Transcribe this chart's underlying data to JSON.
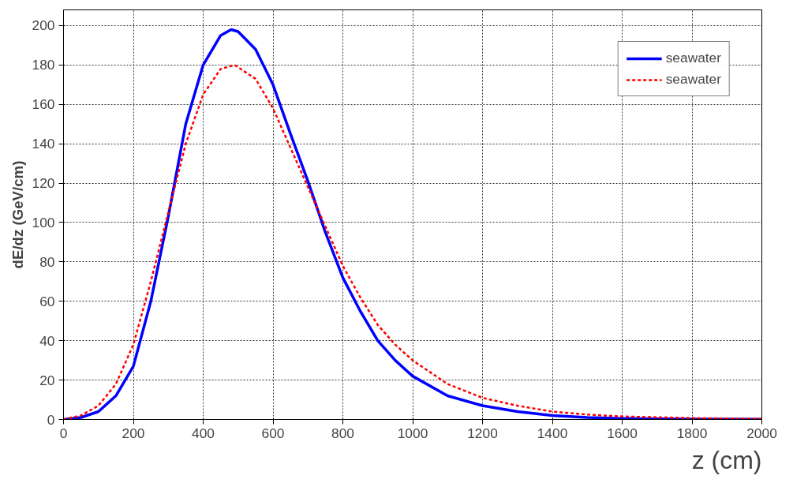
{
  "chart_data": {
    "type": "line",
    "xlabel": "z (cm)",
    "ylabel": "dE/dz (GeV/cm)",
    "xlim": [
      0,
      2000
    ],
    "xticks": [
      0,
      200,
      400,
      600,
      800,
      1000,
      1200,
      1400,
      1600,
      1800,
      2000
    ],
    "ylim": [
      0,
      208
    ],
    "yticks": [
      0,
      20,
      40,
      60,
      80,
      100,
      120,
      140,
      160,
      180,
      200
    ],
    "grid": true,
    "legend": "top right",
    "marker": "none",
    "series": [
      {
        "name": "seawater",
        "color": "#0000ff",
        "line_style": "solid",
        "x": [
          0,
          50,
          100,
          150,
          200,
          250,
          300,
          350,
          400,
          450,
          480,
          500,
          550,
          600,
          650,
          700,
          750,
          800,
          850,
          900,
          950,
          1000,
          1100,
          1200,
          1300,
          1400,
          1500,
          1600,
          1800,
          2000
        ],
        "values": [
          0,
          1,
          4,
          12,
          27,
          60,
          103,
          150,
          180,
          195,
          198,
          197,
          188,
          170,
          145,
          121,
          95,
          72,
          55,
          40,
          30,
          22,
          12,
          7,
          4,
          2,
          1,
          0.5,
          0.2,
          0.1
        ]
      },
      {
        "name": "seawater",
        "color": "#ff0000",
        "line_style": "dashed",
        "x": [
          0,
          50,
          100,
          150,
          200,
          250,
          300,
          350,
          400,
          450,
          490,
          550,
          600,
          650,
          700,
          750,
          800,
          850,
          900,
          950,
          1000,
          1100,
          1200,
          1300,
          1400,
          1500,
          1600,
          1800,
          2000
        ],
        "values": [
          0,
          2,
          7,
          18,
          38,
          70,
          105,
          140,
          165,
          178,
          180,
          173,
          158,
          138,
          118,
          98,
          78,
          62,
          48,
          38,
          30,
          18,
          11,
          7,
          4,
          2.5,
          1.5,
          0.7,
          0.3
        ]
      }
    ]
  }
}
